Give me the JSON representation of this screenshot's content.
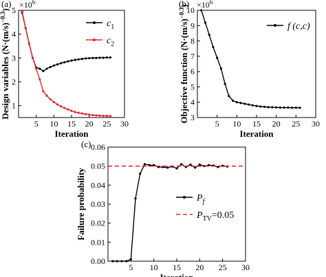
{
  "chart_data": [
    {
      "panel": "(a)",
      "type": "line",
      "xlabel": "Iteration",
      "ylabel": "Design variables (N·(m/s)⁻⁰˙³)",
      "ylabel_display": "Design variables (N·(m/s)",
      "ylabel_exp": "−0.3",
      "ylabel_tail": ")",
      "y_multiplier": "×10",
      "y_multiplier_exp": "6",
      "xlim": [
        0,
        30
      ],
      "ylim": [
        0.5,
        5
      ],
      "xticks": [
        5,
        10,
        15,
        20,
        25,
        30
      ],
      "yticks": [
        1,
        2,
        3,
        4,
        5
      ],
      "legend_position": "top-right",
      "series": [
        {
          "name": "c",
          "name_sub": "1",
          "color": "#000000",
          "x": [
            1,
            2,
            3,
            4,
            5,
            6,
            7,
            8,
            9,
            10,
            11,
            12,
            13,
            14,
            15,
            16,
            17,
            18,
            19,
            20,
            21,
            22,
            23,
            24,
            25,
            26
          ],
          "y": [
            4.9,
            4.25,
            3.6,
            3.0,
            2.6,
            2.55,
            2.45,
            2.55,
            2.62,
            2.68,
            2.73,
            2.78,
            2.82,
            2.86,
            2.89,
            2.92,
            2.94,
            2.96,
            2.98,
            2.99,
            3.0,
            3.0,
            3.01,
            3.01,
            3.02,
            3.02
          ]
        },
        {
          "name": "c",
          "name_sub": "2",
          "color": "#e8252a",
          "x": [
            1,
            2,
            3,
            4,
            5,
            6,
            7,
            8,
            9,
            10,
            11,
            12,
            13,
            14,
            15,
            16,
            17,
            18,
            19,
            20,
            21,
            22,
            23,
            24,
            25,
            26
          ],
          "y": [
            4.95,
            4.25,
            3.6,
            3.0,
            2.55,
            2.1,
            1.6,
            1.42,
            1.27,
            1.15,
            1.05,
            0.97,
            0.9,
            0.84,
            0.78,
            0.73,
            0.7,
            0.67,
            0.64,
            0.62,
            0.6,
            0.59,
            0.58,
            0.57,
            0.57,
            0.56
          ]
        }
      ]
    },
    {
      "panel": "(b)",
      "type": "line",
      "xlabel": "Iteration",
      "ylabel_display": "Objective function (N·(m/s)",
      "ylabel_exp": "−0.3",
      "ylabel_tail": ")",
      "y_multiplier": "×10",
      "y_multiplier_exp": "6",
      "xlim": [
        0,
        30
      ],
      "ylim": [
        3,
        10
      ],
      "xticks": [
        5,
        10,
        15,
        20,
        25,
        30
      ],
      "yticks": [
        3,
        4,
        5,
        6,
        7,
        8,
        9,
        10
      ],
      "legend_position": "top-right",
      "series": [
        {
          "name": "f (c",
          "name_mid": ",c",
          "name_tail": ")",
          "color": "#000000",
          "x": [
            1,
            2,
            3,
            4,
            5,
            6,
            7,
            8,
            9,
            10,
            11,
            12,
            13,
            14,
            15,
            16,
            17,
            18,
            19,
            20,
            21,
            22,
            23,
            24,
            25,
            26
          ],
          "y": [
            10.0,
            9.2,
            8.4,
            7.6,
            6.9,
            6.2,
            5.2,
            4.4,
            4.1,
            4.0,
            3.95,
            3.9,
            3.85,
            3.8,
            3.75,
            3.72,
            3.7,
            3.68,
            3.67,
            3.66,
            3.65,
            3.65,
            3.65,
            3.64,
            3.64,
            3.64
          ]
        }
      ]
    },
    {
      "panel": "(c)",
      "type": "line",
      "xlabel": "Iteration",
      "ylabel": "Failure probability",
      "xlim": [
        0,
        30
      ],
      "ylim": [
        0.0,
        0.06
      ],
      "xticks": [
        5,
        10,
        15,
        20,
        25,
        30
      ],
      "yticks": [
        "0.00",
        "0.01",
        "0.02",
        "0.03",
        "0.04",
        "0.05",
        "0.06"
      ],
      "ytick_values": [
        0.0,
        0.01,
        0.02,
        0.03,
        0.04,
        0.05,
        0.06
      ],
      "legend_position": "center-right",
      "series": [
        {
          "name": "P",
          "name_sub": "f",
          "color": "#000000",
          "x": [
            1,
            2,
            3,
            4,
            5,
            6,
            7,
            8,
            9,
            10,
            11,
            12,
            13,
            14,
            15,
            16,
            17,
            18,
            19,
            20,
            21,
            22,
            23,
            24,
            25,
            26
          ],
          "y": [
            0.0,
            0.0,
            0.0,
            0.0,
            0.001,
            0.033,
            0.046,
            0.051,
            0.0505,
            0.0505,
            0.0495,
            0.0495,
            0.0492,
            0.0498,
            0.0488,
            0.051,
            0.0495,
            0.0508,
            0.0492,
            0.0508,
            0.05,
            0.0505,
            0.0503,
            0.0495,
            0.0502,
            0.0498
          ]
        },
        {
          "name": "P",
          "name_sub": "TV",
          "name_tail": "=0.05",
          "color": "#e8252a",
          "dashed": true,
          "constant": 0.05
        }
      ]
    }
  ]
}
